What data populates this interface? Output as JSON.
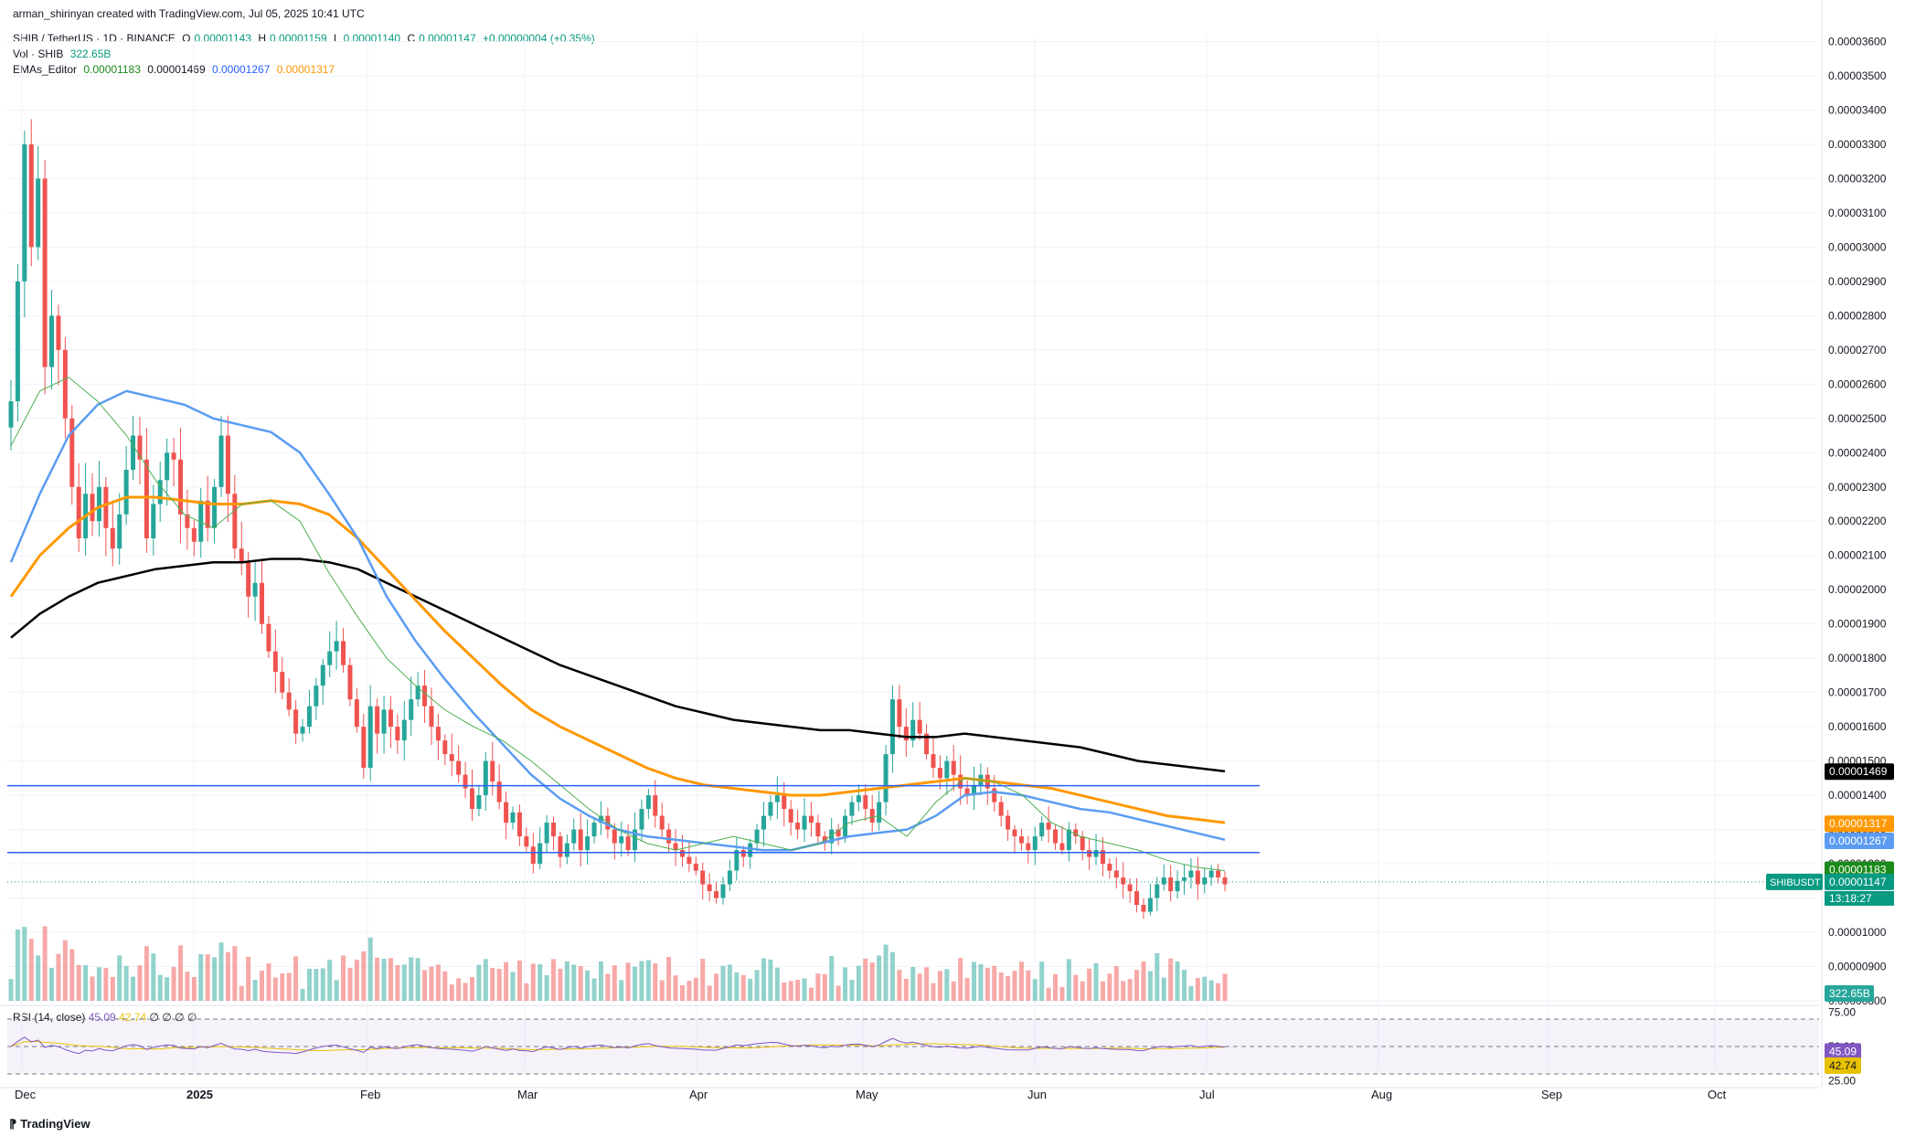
{
  "credit": "arman_shirinyan created with TradingView.com, Jul 05, 2025 10:41 UTC",
  "symbol": {
    "title": "SHIB / TetherUS · 1D · BINANCE",
    "o_label": "O",
    "o": "0.00001143",
    "h_label": "H",
    "h": "0.00001159",
    "l_label": "L",
    "l": "0.00001140",
    "c_label": "C",
    "c": "0.00001147",
    "change": "+0.00000004 (+0.35%)"
  },
  "volume_legend": {
    "label": "Vol · SHIB",
    "value": "322.65B"
  },
  "ema_legend": {
    "label": "EMAs_Editor",
    "v1": "0.00001183",
    "v2": "0.00001469",
    "v3": "0.00001267",
    "v4": "0.00001317"
  },
  "rsi_legend": {
    "label": "RSI (14, close)",
    "v1": "45.09",
    "v2": "42.74",
    "rest": "∅ ∅ ∅ ∅"
  },
  "footer": {
    "brand": "TradingView",
    "logo": "tradingview-logo-icon"
  },
  "colors": {
    "up": "#26a69a",
    "down": "#ef5350",
    "ema20": "#4caf50",
    "ema50": "#5b9cf2",
    "ema100": "#ff9800",
    "ema200": "#000000",
    "hline": "#2962ff",
    "rsi": "#7e57c2",
    "rsi_ma": "#e8c100"
  },
  "chart_data": {
    "type": "candlestick",
    "x_ticks": [
      "Dec",
      "2025",
      "Feb",
      "Mar",
      "Apr",
      "May",
      "Jun",
      "Jul",
      "Aug",
      "Sep",
      "Oct"
    ],
    "y_ticks": [
      "0.00003600",
      "0.00003500",
      "0.00003400",
      "0.00003300",
      "0.00003200",
      "0.00003100",
      "0.00003000",
      "0.00002900",
      "0.00002800",
      "0.00002700",
      "0.00002600",
      "0.00002500",
      "0.00002400",
      "0.00002300",
      "0.00002200",
      "0.00002100",
      "0.00002000",
      "0.00001900",
      "0.00001800",
      "0.00001700",
      "0.00001600",
      "0.00001500",
      "0.00001400",
      "0.00001300",
      "0.00001200",
      "0.00001100",
      "0.00001000",
      "0.00000900",
      "0.00000800"
    ],
    "ylim": [
      8e-06,
      3.62e-05
    ],
    "horizontal_lines": [
      1.428e-05,
      1.233e-05
    ],
    "price_labels": [
      {
        "value": "0.00001469",
        "y": 1.469e-05,
        "color": "#000000"
      },
      {
        "value": "0.00001317",
        "y": 1.317e-05,
        "color": "#ff9800"
      },
      {
        "value": "0.00001267",
        "y": 1.267e-05,
        "color": "#5b9cf2"
      },
      {
        "value": "0.00001183",
        "y": 1.183e-05,
        "color": "#1b8a1b"
      },
      {
        "value": "0.00001147",
        "y": 1.147e-05,
        "color": "#089981"
      }
    ],
    "symbol_tag": "SHIBUSDT",
    "countdown": "13:18:27",
    "volume_tag": "322.65B",
    "rsi_ticks": [
      "75.00",
      "50.00",
      "25.00"
    ],
    "rsi_tags": [
      {
        "value": "45.09",
        "y": 45.09,
        "color": "#7e57c2"
      },
      {
        "value": "42.74",
        "y": 42.74,
        "color": "#e8c100"
      }
    ],
    "closes_by_month": {
      "Dec": [
        2.55e-05,
        2.9e-05,
        3.3e-05,
        3e-05,
        3.2e-05,
        2.65e-05,
        2.8e-05,
        2.7e-05,
        2.5e-05,
        2.3e-05,
        2.15e-05,
        2.28e-05,
        2.2e-05,
        2.3e-05,
        2.18e-05,
        2.12e-05,
        2.22e-05,
        2.35e-05,
        2.45e-05,
        2.38e-05,
        2.15e-05,
        2.25e-05
      ],
      "Jan": [
        2.32e-05,
        2.4e-05,
        2.38e-05,
        2.22e-05,
        2.18e-05,
        2.14e-05,
        2.26e-05,
        2.18e-05,
        2.3e-05,
        2.45e-05,
        2.28e-05,
        2.12e-05,
        2.08e-05,
        1.98e-05,
        2.02e-05,
        1.9e-05,
        1.82e-05,
        1.76e-05,
        1.7e-05,
        1.65e-05,
        1.58e-05,
        1.6e-05,
        1.66e-05,
        1.72e-05,
        1.78e-05,
        1.82e-05,
        1.85e-05,
        1.78e-05,
        1.68e-05,
        1.6e-05
      ],
      "Feb": [
        1.48e-05,
        1.66e-05,
        1.58e-05,
        1.65e-05,
        1.6e-05,
        1.56e-05,
        1.62e-05,
        1.68e-05,
        1.72e-05,
        1.66e-05,
        1.6e-05,
        1.56e-05,
        1.52e-05,
        1.5e-05,
        1.46e-05,
        1.42e-05,
        1.36e-05,
        1.4e-05,
        1.5e-05,
        1.44e-05,
        1.38e-05,
        1.32e-05,
        1.35e-05,
        1.28e-05,
        1.25e-05,
        1.2e-05,
        1.26e-05,
        1.32e-05,
        1.28e-05
      ],
      "Mar": [
        1.22e-05,
        1.26e-05,
        1.3e-05,
        1.24e-05,
        1.28e-05,
        1.32e-05,
        1.34e-05,
        1.3e-05,
        1.26e-05,
        1.28e-05,
        1.24e-05,
        1.3e-05,
        1.36e-05,
        1.4e-05,
        1.34e-05,
        1.3e-05,
        1.26e-05,
        1.24e-05,
        1.22e-05,
        1.2e-05,
        1.18e-05,
        1.14e-05,
        1.12e-05,
        1.1e-05,
        1.14e-05,
        1.18e-05,
        1.24e-05,
        1.22e-05,
        1.26e-05,
        1.3e-05,
        1.34e-05
      ],
      "Apr": [
        1.38e-05,
        1.4e-05,
        1.36e-05,
        1.32e-05,
        1.3e-05,
        1.34e-05,
        1.32e-05,
        1.28e-05,
        1.26e-05,
        1.3e-05,
        1.28e-05,
        1.34e-05,
        1.38e-05,
        1.4e-05,
        1.36e-05,
        1.32e-05,
        1.38e-05,
        1.52e-05,
        1.68e-05,
        1.6e-05,
        1.56e-05,
        1.62e-05,
        1.58e-05,
        1.52e-05,
        1.48e-05,
        1.45e-05,
        1.5e-05,
        1.46e-05,
        1.42e-05,
        1.4e-05
      ],
      "May": [
        1.43e-05,
        1.46e-05,
        1.42e-05,
        1.38e-05,
        1.34e-05,
        1.3e-05,
        1.28e-05,
        1.26e-05,
        1.24e-05,
        1.28e-05,
        1.32e-05,
        1.3e-05,
        1.26e-05,
        1.24e-05,
        1.3e-05,
        1.28e-05,
        1.24e-05,
        1.22e-05,
        1.24e-05,
        1.2e-05,
        1.18e-05,
        1.16e-05,
        1.14e-05,
        1.12e-05,
        1.08e-05,
        1.06e-05,
        1.1e-05,
        1.14e-05,
        1.16e-05,
        1.12e-05,
        1.15e-05
      ],
      "Jun": [
        1.16e-05,
        1.18e-05,
        1.14e-05,
        1.16e-05,
        1.18e-05,
        1.16e-05,
        1.14e-05
      ]
    },
    "volume_relative": "bars sized relative to 322.65B latest",
    "rsi_ylim": [
      20,
      80
    ],
    "ema_lines": {
      "ema20": [
        2.42e-05,
        2.58e-05,
        2.62e-05,
        2.55e-05,
        2.45e-05,
        2.32e-05,
        2.22e-05,
        2.18e-05,
        2.25e-05,
        2.26e-05,
        2.2e-05,
        2.05e-05,
        1.92e-05,
        1.8e-05,
        1.72e-05,
        1.65e-05,
        1.6e-05,
        1.56e-05,
        1.5e-05,
        1.43e-05,
        1.36e-05,
        1.3e-05,
        1.26e-05,
        1.24e-05,
        1.26e-05,
        1.28e-05,
        1.26e-05,
        1.24e-05,
        1.26e-05,
        1.32e-05,
        1.34e-05,
        1.28e-05,
        1.38e-05,
        1.45e-05,
        1.44e-05,
        1.4e-05,
        1.32e-05,
        1.28e-05,
        1.26e-05,
        1.24e-05,
        1.21e-05,
        1.19e-05,
        1.18e-05
      ],
      "ema50": [
        2.08e-05,
        2.28e-05,
        2.45e-05,
        2.54e-05,
        2.58e-05,
        2.56e-05,
        2.54e-05,
        2.5e-05,
        2.48e-05,
        2.46e-05,
        2.4e-05,
        2.28e-05,
        2.15e-05,
        1.98e-05,
        1.85e-05,
        1.74e-05,
        1.64e-05,
        1.55e-05,
        1.46e-05,
        1.39e-05,
        1.34e-05,
        1.3e-05,
        1.28e-05,
        1.27e-05,
        1.26e-05,
        1.25e-05,
        1.24e-05,
        1.24e-05,
        1.26e-05,
        1.28e-05,
        1.29e-05,
        1.3e-05,
        1.34e-05,
        1.4e-05,
        1.41e-05,
        1.4e-05,
        1.38e-05,
        1.36e-05,
        1.35e-05,
        1.33e-05,
        1.31e-05,
        1.29e-05,
        1.27e-05
      ],
      "ema100": [
        1.98e-05,
        2.1e-05,
        2.18e-05,
        2.24e-05,
        2.27e-05,
        2.27e-05,
        2.26e-05,
        2.25e-05,
        2.25e-05,
        2.26e-05,
        2.25e-05,
        2.22e-05,
        2.15e-05,
        2.06e-05,
        1.97e-05,
        1.88e-05,
        1.8e-05,
        1.72e-05,
        1.65e-05,
        1.6e-05,
        1.56e-05,
        1.52e-05,
        1.48e-05,
        1.45e-05,
        1.43e-05,
        1.42e-05,
        1.41e-05,
        1.4e-05,
        1.4e-05,
        1.41e-05,
        1.42e-05,
        1.43e-05,
        1.44e-05,
        1.45e-05,
        1.44e-05,
        1.43e-05,
        1.42e-05,
        1.4e-05,
        1.38e-05,
        1.36e-05,
        1.34e-05,
        1.33e-05,
        1.32e-05
      ],
      "ema200": [
        1.86e-05,
        1.93e-05,
        1.98e-05,
        2.02e-05,
        2.04e-05,
        2.06e-05,
        2.07e-05,
        2.08e-05,
        2.08e-05,
        2.09e-05,
        2.09e-05,
        2.08e-05,
        2.06e-05,
        2.02e-05,
        1.98e-05,
        1.94e-05,
        1.9e-05,
        1.86e-05,
        1.82e-05,
        1.78e-05,
        1.75e-05,
        1.72e-05,
        1.69e-05,
        1.66e-05,
        1.64e-05,
        1.62e-05,
        1.61e-05,
        1.6e-05,
        1.59e-05,
        1.59e-05,
        1.58e-05,
        1.57e-05,
        1.57e-05,
        1.58e-05,
        1.57e-05,
        1.56e-05,
        1.55e-05,
        1.54e-05,
        1.52e-05,
        1.5e-05,
        1.49e-05,
        1.48e-05,
        1.47e-05
      ]
    }
  }
}
